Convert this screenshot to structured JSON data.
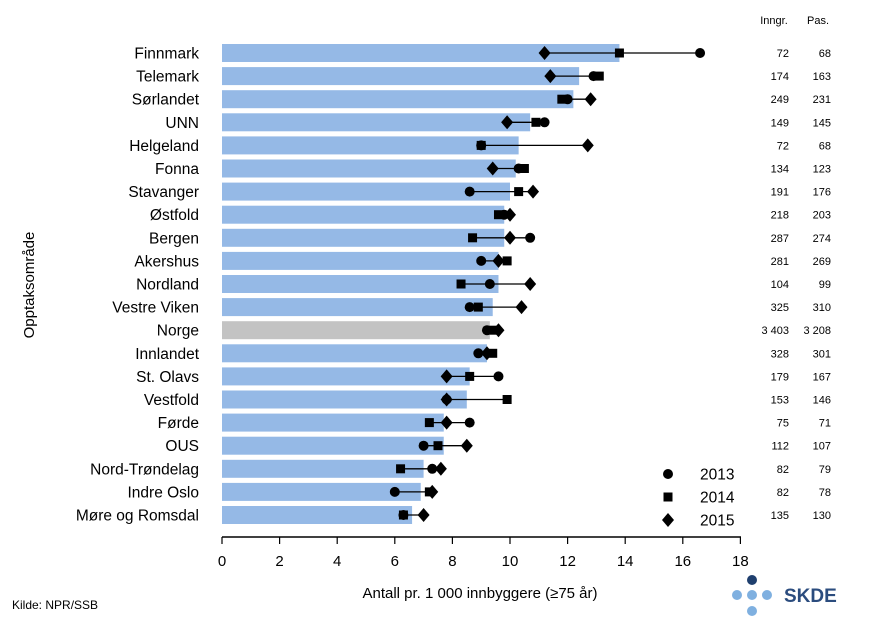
{
  "chart_data": {
    "type": "bar",
    "title": "",
    "xlabel": "Antall pr. 1 000 innbyggere (≥75 år)",
    "ylabel": "Opptaksområde",
    "xlim": [
      0,
      18
    ],
    "xticks": [
      "0",
      "2",
      "4",
      "6",
      "8",
      "10",
      "12",
      "14",
      "16",
      "18"
    ],
    "grid": false,
    "legend_position": "bottom-right",
    "bar_color": "#95b9e6",
    "highlight_color": "#c3c3c3",
    "highlight_category": "Norge",
    "categories": [
      "Finnmark",
      "Telemark",
      "Sørlandet",
      "UNN",
      "Helgeland",
      "Fonna",
      "Stavanger",
      "Østfold",
      "Bergen",
      "Akershus",
      "Nordland",
      "Vestre Viken",
      "Norge",
      "Innlandet",
      "St. Olavs",
      "Vestfold",
      "Førde",
      "OUS",
      "Nord-Trøndelag",
      "Indre Oslo",
      "Møre og Romsdal"
    ],
    "values": [
      13.8,
      12.4,
      12.2,
      10.7,
      10.3,
      10.2,
      10.0,
      9.8,
      9.8,
      9.6,
      9.6,
      9.4,
      9.3,
      9.2,
      8.6,
      8.5,
      7.7,
      7.7,
      7.0,
      6.9,
      6.6
    ],
    "series": [
      {
        "name": "2013",
        "marker": "circle",
        "values": [
          16.6,
          12.9,
          12.0,
          11.2,
          9.0,
          10.3,
          8.6,
          9.8,
          10.7,
          9.0,
          9.3,
          8.6,
          9.2,
          8.9,
          9.6,
          7.8,
          8.6,
          7.0,
          7.3,
          6.0,
          6.3
        ]
      },
      {
        "name": "2014",
        "marker": "square",
        "values": [
          13.8,
          13.1,
          11.8,
          10.9,
          9.0,
          10.5,
          10.3,
          9.6,
          8.7,
          9.9,
          8.3,
          8.9,
          9.4,
          9.4,
          8.6,
          9.9,
          7.2,
          7.5,
          6.2,
          7.2,
          6.3
        ]
      },
      {
        "name": "2015",
        "marker": "diamond",
        "values": [
          11.2,
          11.4,
          12.8,
          9.9,
          12.7,
          9.4,
          10.8,
          10.0,
          10.0,
          9.6,
          10.7,
          10.4,
          9.6,
          9.2,
          7.8,
          7.8,
          7.8,
          8.5,
          7.6,
          7.3,
          7.0
        ]
      }
    ],
    "table": {
      "headers": [
        "Inngr.",
        "Pas."
      ],
      "inngr": [
        "72",
        "174",
        "249",
        "149",
        "72",
        "134",
        "191",
        "218",
        "287",
        "281",
        "104",
        "325",
        "3 403",
        "328",
        "179",
        "153",
        "75",
        "112",
        "82",
        "82",
        "135"
      ],
      "pas": [
        "68",
        "163",
        "231",
        "145",
        "68",
        "123",
        "176",
        "203",
        "274",
        "269",
        "99",
        "310",
        "3 208",
        "301",
        "167",
        "146",
        "71",
        "107",
        "79",
        "78",
        "130"
      ]
    }
  },
  "source": "Kilde: NPR/SSB",
  "logo_text": "SKDE",
  "colors": {
    "logo_dark": "#1f3f6e",
    "logo_light": "#7fb0e0",
    "logo_text": "#2b4c7e"
  }
}
